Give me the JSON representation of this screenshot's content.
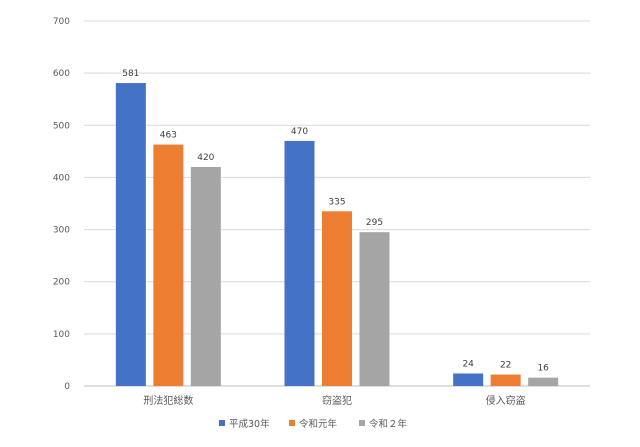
{
  "chart_data": {
    "type": "bar",
    "categories": [
      "刑法犯総数",
      "窃盗犯",
      "侵入窃盗"
    ],
    "series": [
      {
        "name": "平成30年",
        "values": [
          581,
          470,
          24
        ],
        "color": "#4472C4"
      },
      {
        "name": "令和元年",
        "values": [
          463,
          335,
          22
        ],
        "color": "#ED7D31"
      },
      {
        "name": "令和２年",
        "values": [
          420,
          295,
          16
        ],
        "color": "#A5A5A5"
      }
    ],
    "y_ticks": [
      0,
      100,
      200,
      300,
      400,
      500,
      600,
      700
    ],
    "ylim": [
      0,
      700
    ],
    "title": "",
    "xlabel": "",
    "ylabel": "",
    "grid": true,
    "legend_position": "bottom",
    "data_labels": true
  }
}
